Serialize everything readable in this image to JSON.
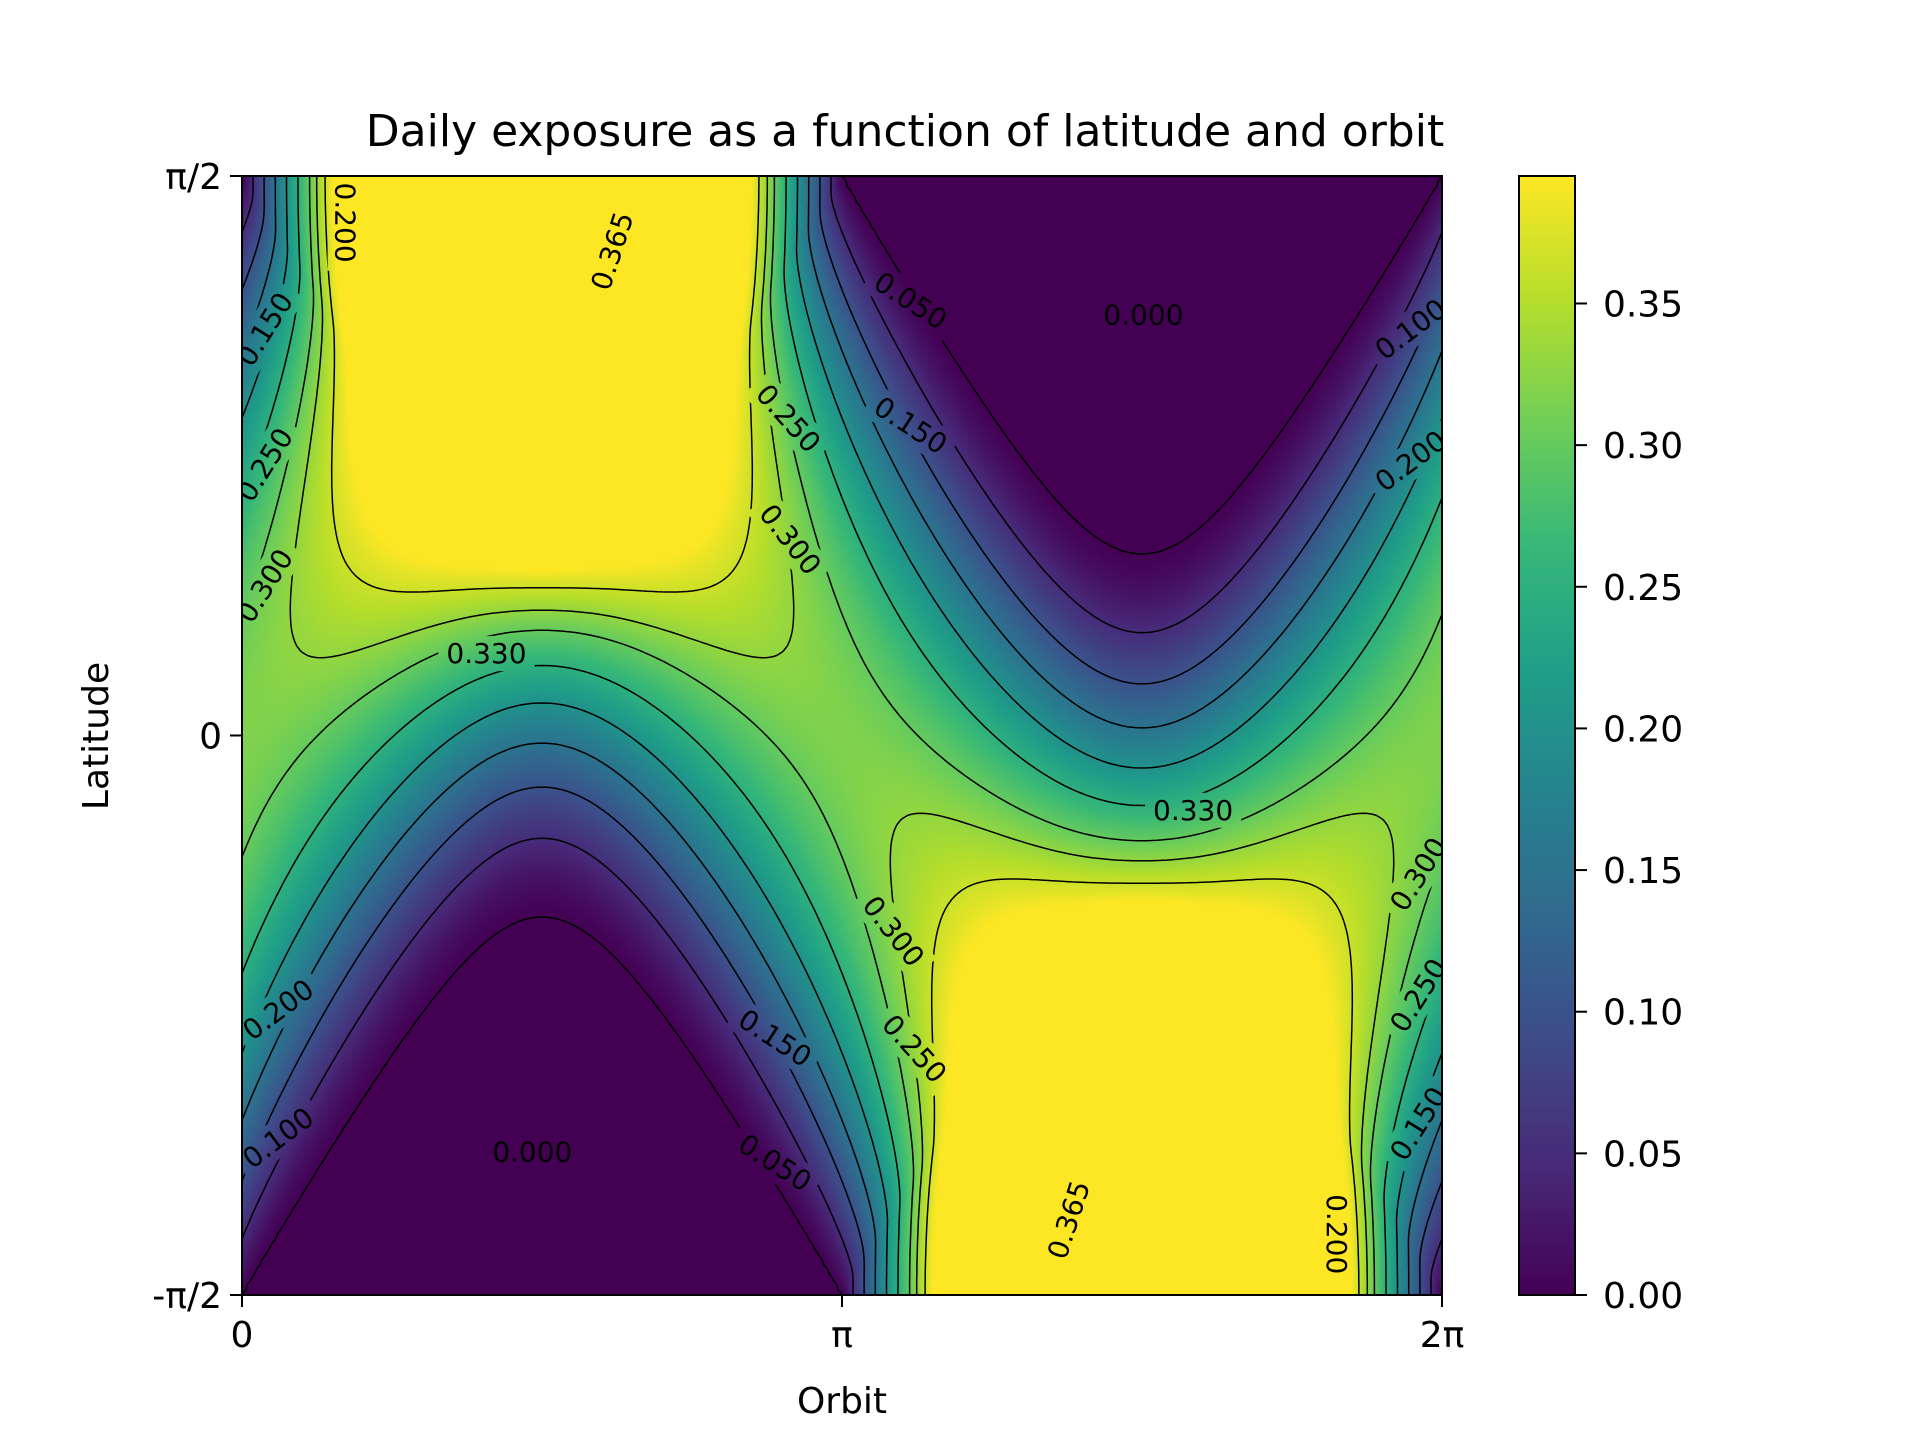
{
  "chart_data": {
    "type": "heatmap",
    "title": "Daily exposure as a function of latitude and orbit",
    "xlabel": "Orbit",
    "ylabel": "Latitude",
    "xlim": [
      0,
      6.283185
    ],
    "ylim": [
      -1.570796,
      1.570796
    ],
    "x_ticks": [
      {
        "value": 0,
        "label": "0"
      },
      {
        "value": 3.141593,
        "label": "π"
      },
      {
        "value": 6.283185,
        "label": "2π"
      }
    ],
    "y_ticks": [
      {
        "value": -1.570796,
        "label": "-π/2"
      },
      {
        "value": 0,
        "label": "0"
      },
      {
        "value": 1.570796,
        "label": "π/2"
      }
    ],
    "colormap": "viridis",
    "colormap_stops": [
      "#440154",
      "#482878",
      "#3e4a89",
      "#31688e",
      "#26828e",
      "#1f9e89",
      "#35b779",
      "#6ece58",
      "#b5de2b",
      "#fde725"
    ],
    "color_range": [
      0,
      0.395
    ],
    "colorbar_ticks": [
      {
        "value": 0.0,
        "label": "0.00"
      },
      {
        "value": 0.05,
        "label": "0.05"
      },
      {
        "value": 0.1,
        "label": "0.10"
      },
      {
        "value": 0.15,
        "label": "0.15"
      },
      {
        "value": 0.2,
        "label": "0.20"
      },
      {
        "value": 0.25,
        "label": "0.25"
      },
      {
        "value": 0.3,
        "label": "0.30"
      },
      {
        "value": 0.35,
        "label": "0.35"
      }
    ],
    "contour_levels": [
      0.0,
      0.05,
      0.1,
      0.15,
      0.2,
      0.25,
      0.3,
      0.33,
      0.365
    ],
    "contour_labels": [
      {
        "text": "0.000",
        "x": 4.72,
        "y": 1.18,
        "angle": 0
      },
      {
        "text": "0.050",
        "x": 3.5,
        "y": 1.22,
        "angle": 33
      },
      {
        "text": "0.100",
        "x": 6.12,
        "y": 1.14,
        "angle": -37
      },
      {
        "text": "0.150",
        "x": 3.5,
        "y": 0.87,
        "angle": 33
      },
      {
        "text": "0.200",
        "x": 6.12,
        "y": 0.77,
        "angle": -37
      },
      {
        "text": "0.250",
        "x": 2.86,
        "y": 0.89,
        "angle": 48
      },
      {
        "text": "0.300",
        "x": 2.87,
        "y": 0.55,
        "angle": 52
      },
      {
        "text": "0.330",
        "x": 1.28,
        "y": 0.23,
        "angle": 0
      },
      {
        "text": "0.365",
        "x": 1.94,
        "y": 1.36,
        "angle": -72
      },
      {
        "text": "0.200",
        "x": 0.54,
        "y": 1.44,
        "angle": 90
      },
      {
        "text": "0.150",
        "x": 0.12,
        "y": 1.14,
        "angle": -58
      },
      {
        "text": "0.250",
        "x": 0.12,
        "y": 0.76,
        "angle": -58
      },
      {
        "text": "0.300",
        "x": 0.12,
        "y": 0.42,
        "angle": -58
      },
      {
        "text": "0.000",
        "x": 1.52,
        "y": -1.17,
        "angle": 0
      },
      {
        "text": "0.050",
        "x": 2.79,
        "y": -1.2,
        "angle": 33
      },
      {
        "text": "0.100",
        "x": 0.19,
        "y": -1.13,
        "angle": -37
      },
      {
        "text": "0.150",
        "x": 2.79,
        "y": -0.85,
        "angle": 33
      },
      {
        "text": "0.200",
        "x": 0.19,
        "y": -0.77,
        "angle": -37
      },
      {
        "text": "0.250",
        "x": 3.52,
        "y": -0.88,
        "angle": 48
      },
      {
        "text": "0.300",
        "x": 3.41,
        "y": -0.55,
        "angle": 52
      },
      {
        "text": "0.330",
        "x": 4.98,
        "y": -0.21,
        "angle": 0
      },
      {
        "text": "0.365",
        "x": 4.33,
        "y": -1.36,
        "angle": -72
      },
      {
        "text": "0.200",
        "x": 5.73,
        "y": -1.4,
        "angle": 90
      },
      {
        "text": "0.150",
        "x": 6.16,
        "y": -1.09,
        "angle": -58
      },
      {
        "text": "0.250",
        "x": 6.16,
        "y": -0.73,
        "angle": -58
      },
      {
        "text": "0.300",
        "x": 6.16,
        "y": -0.39,
        "angle": -58
      }
    ],
    "grid": false,
    "legend": "colorbar-right"
  }
}
